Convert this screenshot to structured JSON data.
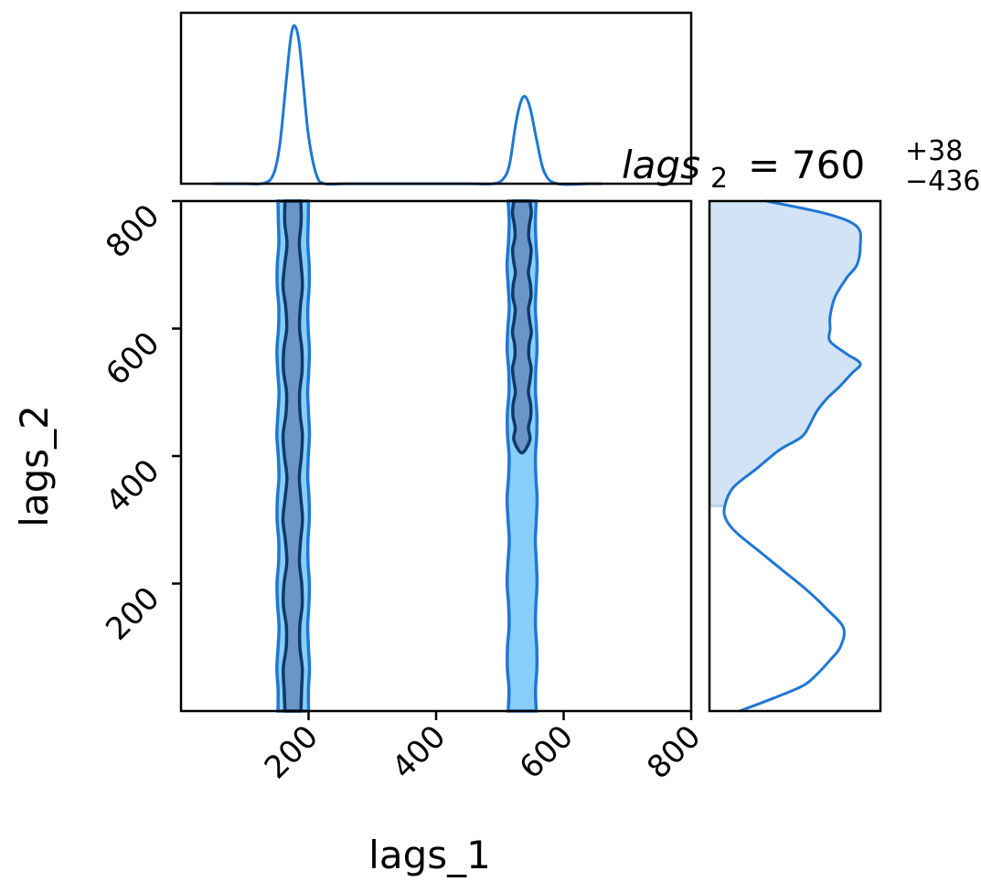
{
  "chart_data": {
    "type": "corner",
    "colors": {
      "line": "#1f77d4",
      "outer_fill": "#87cefa",
      "inner_fill": "#6b95c6",
      "inner_edge": "#0e3a6b",
      "shade_fill": "#d1e3f5"
    },
    "x_axis": {
      "label": "lags_1",
      "range": [
        0,
        800
      ],
      "ticks": [
        200,
        400,
        600,
        800
      ],
      "tick_labels": [
        "200",
        "400",
        "600",
        "800"
      ]
    },
    "y_axis": {
      "label": "lags_2",
      "range": [
        0,
        800
      ],
      "ticks": [
        200,
        400,
        600,
        800
      ],
      "tick_labels": [
        "200",
        "400",
        "600",
        "800"
      ]
    },
    "title": {
      "var": "lags",
      "sub": "2",
      "value": "760",
      "plus": "+38",
      "minus": "−436"
    },
    "marginal_x": {
      "x": [
        50,
        100,
        130,
        145,
        155,
        165,
        172,
        178,
        185,
        192,
        200,
        212,
        225,
        260,
        350,
        450,
        490,
        505,
        515,
        525,
        533,
        540,
        548,
        558,
        570,
        590,
        640,
        660
      ],
      "density": [
        0.0,
        0.0,
        0.003,
        0.06,
        0.25,
        0.65,
        0.92,
        1.0,
        0.9,
        0.62,
        0.3,
        0.06,
        0.0,
        0.0,
        0.0,
        0.0,
        0.0,
        0.03,
        0.12,
        0.38,
        0.52,
        0.55,
        0.47,
        0.27,
        0.07,
        0.0,
        0.0,
        0.0
      ]
    },
    "marginal_y": {
      "y": [
        0,
        20,
        40,
        60,
        80,
        100,
        130,
        160,
        190,
        220,
        250,
        280,
        300,
        320,
        350,
        380,
        410,
        430,
        450,
        470,
        490,
        510,
        530,
        545,
        560,
        580,
        600,
        620,
        650,
        680,
        700,
        730,
        760,
        780,
        800
      ],
      "density": [
        0.18,
        0.38,
        0.56,
        0.65,
        0.72,
        0.78,
        0.8,
        0.7,
        0.58,
        0.44,
        0.3,
        0.16,
        0.1,
        0.09,
        0.14,
        0.28,
        0.42,
        0.55,
        0.6,
        0.64,
        0.7,
        0.78,
        0.85,
        0.9,
        0.82,
        0.72,
        0.72,
        0.72,
        0.75,
        0.82,
        0.88,
        0.9,
        0.88,
        0.7,
        0.34
      ],
      "shade_from": 322
    },
    "contours_2d": {
      "outer": [
        {
          "left": 152,
          "right": 200,
          "y_bottom": 0,
          "y_top": 800
        },
        {
          "left": 513,
          "right": 557,
          "y_bottom": 0,
          "y_top": 800
        }
      ],
      "inner": [
        {
          "left": 163,
          "right": 188,
          "y_bottom": 0,
          "y_top": 800
        },
        {
          "left": 522,
          "right": 547,
          "y_bottom": 405,
          "y_top": 800
        }
      ]
    }
  }
}
